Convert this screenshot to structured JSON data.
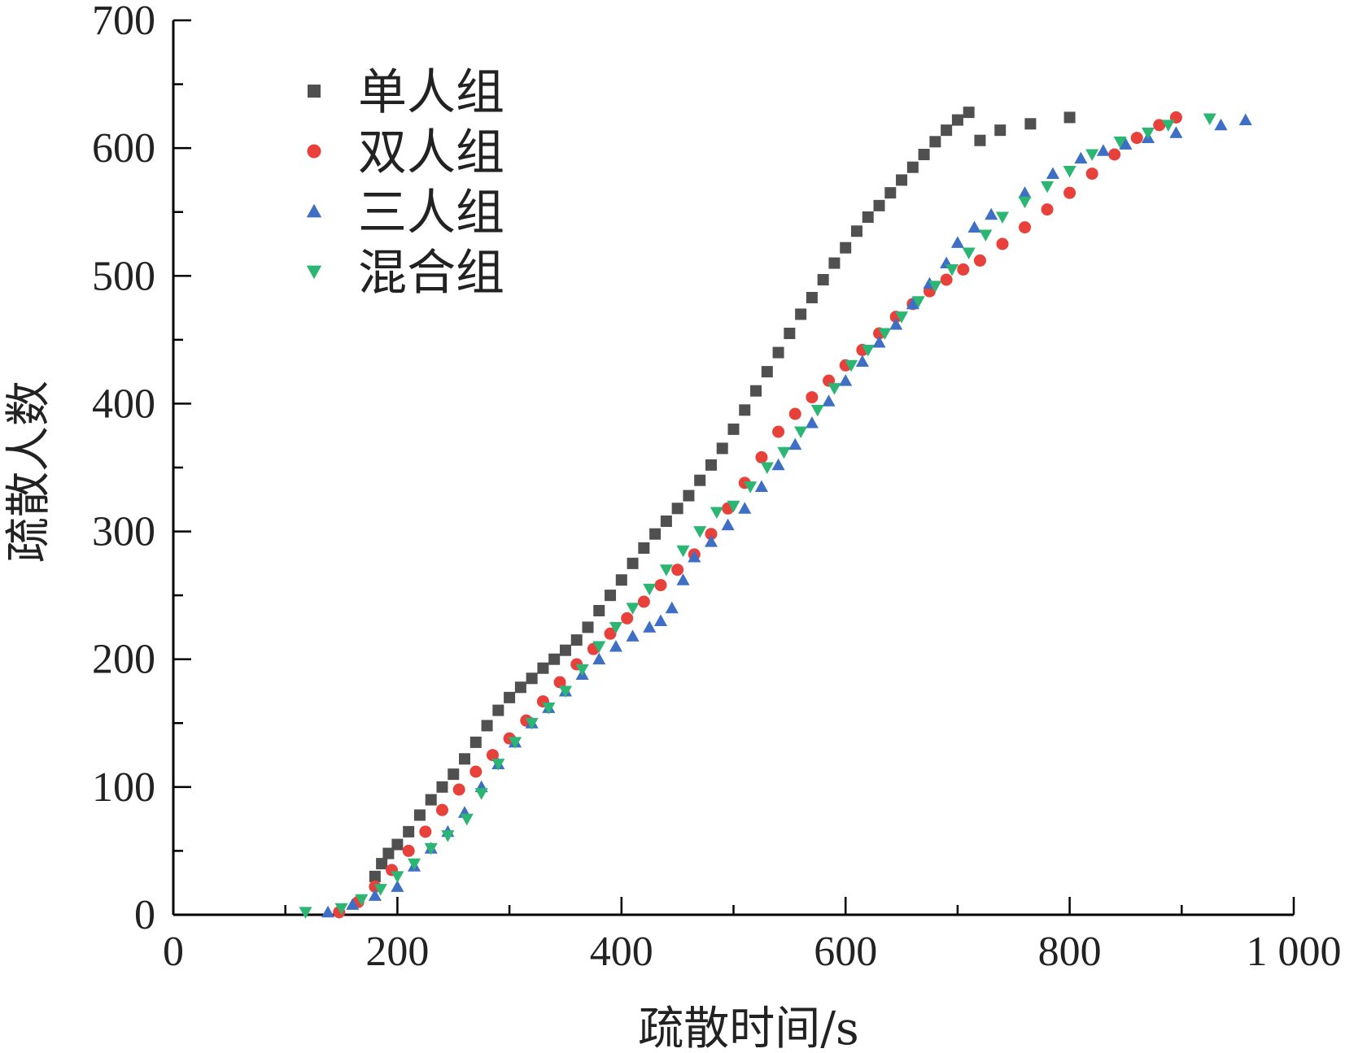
{
  "chart_data": {
    "type": "scatter",
    "title": "",
    "xlabel": "疏散时间/s",
    "ylabel": "疏散人数",
    "xlim": [
      0,
      1000
    ],
    "ylim": [
      0,
      700
    ],
    "xticks": [
      0,
      200,
      400,
      600,
      800,
      1000
    ],
    "xtick_labels": [
      "0",
      "200",
      "400",
      "600",
      "800",
      "1 000"
    ],
    "yticks": [
      0,
      100,
      200,
      300,
      400,
      500,
      600,
      700
    ],
    "ytick_labels": [
      "0",
      "100",
      "200",
      "300",
      "400",
      "500",
      "600",
      "700"
    ],
    "grid": false,
    "legend_position": "top-left",
    "series": [
      {
        "name": "单人组",
        "marker": "square",
        "color": "#505050",
        "x": [
          180,
          186,
          192,
          200,
          210,
          220,
          230,
          240,
          250,
          260,
          270,
          280,
          290,
          300,
          310,
          320,
          330,
          340,
          350,
          360,
          370,
          380,
          390,
          400,
          410,
          420,
          430,
          440,
          450,
          460,
          470,
          480,
          490,
          500,
          510,
          520,
          530,
          540,
          550,
          560,
          570,
          580,
          590,
          600,
          610,
          620,
          630,
          640,
          650,
          660,
          670,
          680,
          690,
          700,
          710,
          720,
          738,
          765,
          800
        ],
        "y": [
          30,
          40,
          48,
          55,
          65,
          78,
          90,
          100,
          110,
          122,
          135,
          148,
          160,
          170,
          178,
          185,
          193,
          200,
          207,
          215,
          225,
          238,
          250,
          262,
          275,
          287,
          298,
          308,
          318,
          328,
          340,
          352,
          365,
          380,
          395,
          410,
          425,
          440,
          455,
          470,
          483,
          497,
          510,
          522,
          535,
          546,
          555,
          565,
          575,
          585,
          595,
          605,
          614,
          622,
          628,
          606,
          614,
          619,
          624
        ]
      },
      {
        "name": "双人组",
        "marker": "circle",
        "color": "#e8413b",
        "x": [
          148,
          165,
          180,
          195,
          210,
          225,
          240,
          255,
          270,
          285,
          300,
          315,
          330,
          345,
          360,
          375,
          390,
          405,
          420,
          435,
          450,
          465,
          480,
          495,
          510,
          525,
          540,
          555,
          570,
          585,
          600,
          615,
          630,
          645,
          660,
          675,
          690,
          705,
          720,
          740,
          760,
          780,
          800,
          820,
          840,
          860,
          880,
          895
        ],
        "y": [
          2,
          10,
          22,
          35,
          50,
          65,
          82,
          98,
          112,
          125,
          138,
          152,
          167,
          182,
          196,
          208,
          220,
          232,
          245,
          258,
          270,
          282,
          298,
          318,
          338,
          358,
          378,
          392,
          405,
          418,
          430,
          442,
          455,
          468,
          478,
          488,
          497,
          505,
          512,
          525,
          538,
          552,
          565,
          580,
          595,
          608,
          618,
          624
        ]
      },
      {
        "name": "三人组",
        "marker": "triangle-up",
        "color": "#3f6fc4",
        "x": [
          138,
          160,
          180,
          200,
          215,
          230,
          245,
          260,
          275,
          290,
          305,
          320,
          335,
          350,
          365,
          380,
          395,
          410,
          425,
          435,
          445,
          455,
          465,
          480,
          495,
          510,
          525,
          540,
          555,
          570,
          585,
          600,
          615,
          630,
          645,
          660,
          675,
          690,
          700,
          715,
          730,
          760,
          785,
          810,
          830,
          850,
          870,
          895,
          935,
          957
        ],
        "y": [
          2,
          8,
          15,
          22,
          38,
          52,
          65,
          80,
          100,
          118,
          135,
          150,
          162,
          175,
          188,
          200,
          210,
          218,
          225,
          230,
          240,
          262,
          280,
          292,
          305,
          318,
          335,
          352,
          368,
          385,
          402,
          418,
          433,
          448,
          462,
          478,
          494,
          510,
          526,
          538,
          548,
          565,
          580,
          592,
          598,
          603,
          608,
          612,
          618,
          622
        ]
      },
      {
        "name": "混合组",
        "marker": "triangle-down",
        "color": "#2bb673",
        "x": [
          118,
          150,
          168,
          185,
          200,
          215,
          230,
          245,
          262,
          275,
          290,
          305,
          320,
          335,
          350,
          365,
          380,
          395,
          410,
          425,
          440,
          455,
          470,
          485,
          500,
          515,
          530,
          545,
          560,
          575,
          590,
          605,
          620,
          635,
          650,
          665,
          680,
          695,
          710,
          725,
          740,
          760,
          780,
          800,
          820,
          845,
          870,
          888,
          925
        ],
        "y": [
          2,
          5,
          12,
          20,
          30,
          40,
          52,
          62,
          75,
          95,
          118,
          135,
          150,
          162,
          175,
          192,
          210,
          225,
          240,
          255,
          270,
          285,
          300,
          315,
          320,
          335,
          350,
          362,
          378,
          395,
          412,
          430,
          442,
          455,
          468,
          480,
          492,
          505,
          518,
          532,
          546,
          558,
          570,
          582,
          595,
          605,
          612,
          618,
          623
        ]
      }
    ]
  }
}
